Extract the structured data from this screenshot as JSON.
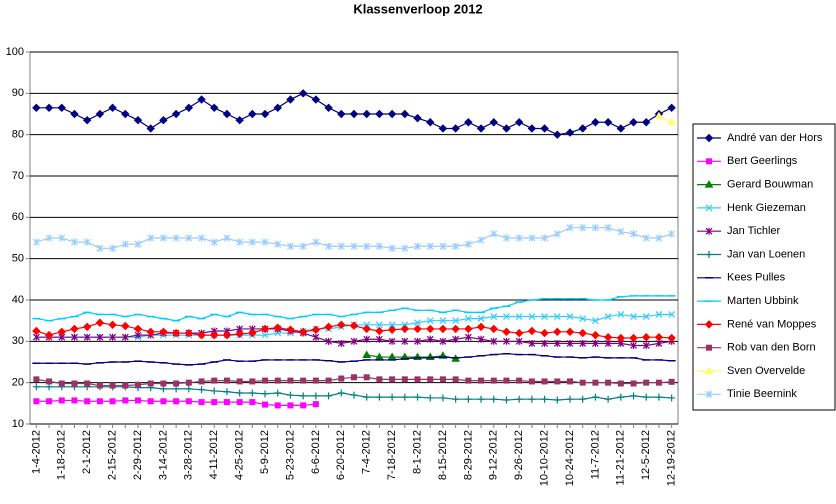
{
  "chart_data": {
    "type": "line",
    "title": "Klassenverloop 2012",
    "categories": [
      "1-4-2012",
      null,
      "1-18-2012",
      null,
      "2-1-2012",
      null,
      "2-15-2012",
      null,
      "2-29-2012",
      null,
      "3-14-2012",
      null,
      "3-28-2012",
      null,
      "4-11-2012",
      null,
      "4-25-2012",
      null,
      "5-9-2012",
      null,
      "5-23-2012",
      null,
      "6-6-2012",
      null,
      "6-20-2012",
      null,
      "7-4-2012",
      null,
      "7-18-2012",
      null,
      "8-1-2012",
      null,
      "8-15-2012",
      null,
      "8-29-2012",
      null,
      "9-12-2012",
      null,
      "9-26-2012",
      null,
      "10-10-2012",
      null,
      "10-24-2012",
      null,
      "11-7-2012",
      null,
      "11-21-2012",
      null,
      "12-5-2012",
      null,
      "12-19-2012"
    ],
    "ylim": [
      10,
      100
    ],
    "yticks": [
      10,
      20,
      30,
      40,
      50,
      60,
      70,
      80,
      90,
      100
    ],
    "grid": true,
    "legend": "right",
    "series": [
      {
        "name": "André van der Hors",
        "color": "#000080",
        "marker": "diamond",
        "values": [
          86.5,
          86.5,
          86.5,
          85,
          83.5,
          85,
          86.5,
          85,
          83.5,
          81.5,
          83.5,
          85,
          86.5,
          88.5,
          86.5,
          85,
          83.5,
          85,
          85,
          86.5,
          88.5,
          90,
          88.5,
          86.5,
          85,
          85,
          85,
          85,
          85,
          85,
          84,
          83,
          81.5,
          81.5,
          83,
          81.5,
          83,
          81.5,
          83,
          81.5,
          81.5,
          80,
          80.5,
          81.5,
          83,
          83,
          81.5,
          83,
          83,
          85,
          86.5
        ]
      },
      {
        "name": "Bert Geerlings",
        "color": "#ff00ff",
        "marker": "square",
        "values": [
          15.5,
          15.5,
          15.7,
          15.7,
          15.5,
          15.5,
          15.5,
          15.7,
          15.7,
          15.5,
          15.5,
          15.5,
          15.5,
          15.3,
          15.3,
          15.3,
          15.3,
          15.3,
          14.7,
          14.5,
          14.5,
          14.5,
          14.8,
          null,
          null,
          null,
          null,
          null,
          null,
          null,
          null,
          null,
          null,
          null,
          null,
          null,
          null,
          null,
          null,
          null,
          null,
          null,
          null,
          null,
          null,
          null,
          null,
          null,
          null,
          null,
          null
        ]
      },
      {
        "name": "Gerard Bouwman",
        "color": "#008000",
        "marker": "triangle",
        "values": [
          null,
          null,
          null,
          null,
          null,
          null,
          null,
          null,
          null,
          null,
          null,
          null,
          null,
          null,
          null,
          null,
          null,
          null,
          null,
          null,
          null,
          null,
          null,
          null,
          null,
          null,
          26.7,
          26.2,
          26.2,
          26.2,
          26.2,
          26.2,
          26.5,
          25.8,
          null,
          null,
          null,
          null,
          null,
          null,
          null,
          null,
          null,
          null,
          null,
          null,
          null,
          null,
          null,
          null,
          null
        ]
      },
      {
        "name": "Henk Giezeman",
        "color": "#33ccff",
        "marker": "x",
        "values": [
          31,
          31,
          31,
          31,
          31,
          31,
          31,
          31,
          31,
          31.5,
          31.5,
          31.5,
          31.5,
          31.5,
          31.5,
          31.5,
          31.5,
          31.5,
          31.5,
          32,
          32,
          32.5,
          33,
          33,
          33.5,
          34,
          34,
          34,
          34,
          34,
          34.5,
          35,
          35,
          35,
          35.5,
          35.5,
          36,
          36,
          36,
          36,
          36,
          36,
          36,
          35.5,
          35,
          36,
          36.5,
          36,
          36,
          36.5,
          36.5
        ]
      },
      {
        "name": "Jan Tichler",
        "color": "#800080",
        "marker": "star",
        "values": [
          31,
          31,
          31,
          31,
          31,
          31,
          31,
          31,
          31.5,
          31.5,
          32,
          32,
          32,
          32,
          32.5,
          32.5,
          33,
          33,
          33,
          33,
          32.5,
          32,
          31,
          30,
          29.5,
          30,
          30.5,
          30.5,
          30,
          30,
          30,
          30.5,
          30,
          30.5,
          31,
          30.5,
          30,
          30,
          30,
          29.5,
          29.5,
          29.5,
          29.5,
          29.5,
          29.5,
          29.5,
          29.5,
          29,
          29,
          29.5,
          30
        ]
      },
      {
        "name": "Jan van Loenen",
        "color": "#008080",
        "marker": "plus",
        "values": [
          19,
          19,
          19,
          19,
          19,
          19,
          19,
          19,
          18.8,
          18.8,
          18.5,
          18.5,
          18.5,
          18.3,
          18,
          17.8,
          17.5,
          17.5,
          17.3,
          17.5,
          17,
          16.8,
          16.8,
          16.8,
          17.5,
          17,
          16.5,
          16.5,
          16.5,
          16.5,
          16.5,
          16.3,
          16.3,
          16,
          16,
          16,
          16,
          15.8,
          16,
          16,
          16,
          15.8,
          16,
          16,
          16.5,
          16,
          16.5,
          16.8,
          16.5,
          16.5,
          16.3
        ]
      },
      {
        "name": "Kees Pulles",
        "color": "#000080",
        "marker": "dash",
        "values": [
          24.7,
          24.7,
          24.7,
          24.7,
          24.5,
          24.8,
          25,
          25,
          25.2,
          25,
          24.8,
          24.5,
          24.3,
          24.5,
          25,
          25.5,
          25.2,
          25.2,
          25.5,
          25.5,
          25.5,
          25.5,
          25.5,
          25.3,
          25,
          25.2,
          25.5,
          25.5,
          25.5,
          25.8,
          26,
          26,
          26.2,
          26,
          26.2,
          26.5,
          26.8,
          27,
          26.8,
          26.8,
          26.5,
          26.2,
          26.2,
          26,
          26.2,
          26,
          26,
          26,
          25.5,
          25.5,
          25.3
        ]
      },
      {
        "name": "Marten Ubbink",
        "color": "#00ccff",
        "marker": "dash",
        "values": [
          35.5,
          35,
          35.5,
          36,
          37,
          36.5,
          36.5,
          36,
          36.5,
          36,
          35.5,
          35,
          36,
          35.5,
          36.5,
          36,
          37,
          36.5,
          36.5,
          36,
          35.5,
          36,
          36.5,
          36.5,
          36,
          36.5,
          37,
          37,
          37.5,
          38,
          37.5,
          37.5,
          37,
          37.5,
          37,
          37,
          38,
          38.5,
          39.5,
          40,
          40.3,
          40.3,
          40.3,
          40.3,
          40,
          40,
          40.8,
          41,
          41,
          41,
          41
        ]
      },
      {
        "name": "René van Moppes",
        "color": "#ff0000",
        "marker": "diamond",
        "values": [
          32.5,
          31.5,
          32.3,
          33,
          33.5,
          34.5,
          34,
          33.7,
          33,
          32.3,
          32.3,
          32,
          32,
          31.5,
          31.5,
          31.5,
          31.8,
          32,
          33,
          33.3,
          32.8,
          32.3,
          32.8,
          33.5,
          34,
          33.8,
          33,
          32.5,
          32.8,
          33,
          33,
          33,
          33,
          33,
          33,
          33.5,
          33,
          32.3,
          32,
          32.5,
          32,
          32.3,
          32.3,
          32,
          31.5,
          31,
          30.8,
          30.8,
          31,
          31,
          30.8
        ]
      },
      {
        "name": "Rob van den Born",
        "color": "#993366",
        "marker": "square",
        "values": [
          20.8,
          20.3,
          19.8,
          19.8,
          19.8,
          19.3,
          19.3,
          19.3,
          19.5,
          19.8,
          19.8,
          19.8,
          20,
          20.3,
          20.5,
          20.5,
          20.3,
          20.3,
          20.5,
          20.5,
          20.5,
          20.5,
          20.5,
          20.5,
          21,
          21.3,
          21.3,
          20.8,
          20.8,
          20.8,
          20.8,
          20.8,
          20.8,
          20.8,
          20.5,
          20.5,
          20.5,
          20.5,
          20.5,
          20.3,
          20.3,
          20.3,
          20.3,
          20,
          20,
          20,
          19.8,
          19.8,
          20,
          20,
          20.2
        ]
      },
      {
        "name": "Sven Overvelde",
        "color": "#ffff66",
        "marker": "triangle",
        "values": [
          null,
          null,
          null,
          null,
          null,
          null,
          null,
          null,
          null,
          null,
          null,
          null,
          null,
          null,
          null,
          null,
          null,
          null,
          null,
          null,
          null,
          null,
          null,
          null,
          null,
          null,
          null,
          null,
          null,
          null,
          null,
          null,
          null,
          null,
          null,
          null,
          null,
          null,
          null,
          null,
          null,
          null,
          null,
          null,
          null,
          null,
          null,
          null,
          null,
          84.5,
          83
        ]
      },
      {
        "name": "Tinie Beernink",
        "color": "#99ccff",
        "marker": "star",
        "values": [
          54,
          55,
          55,
          54,
          54,
          52.5,
          52.5,
          53.5,
          53.5,
          55,
          55,
          55,
          55,
          55,
          54,
          55,
          54,
          54,
          54,
          53.5,
          53,
          53,
          54,
          53,
          53,
          53,
          53,
          53,
          52.5,
          52.5,
          53,
          53,
          53,
          53,
          53.5,
          54.5,
          56,
          55,
          55,
          55,
          55,
          56,
          57.5,
          57.5,
          57.5,
          57.5,
          56.5,
          56,
          55,
          55,
          56
        ]
      }
    ]
  }
}
